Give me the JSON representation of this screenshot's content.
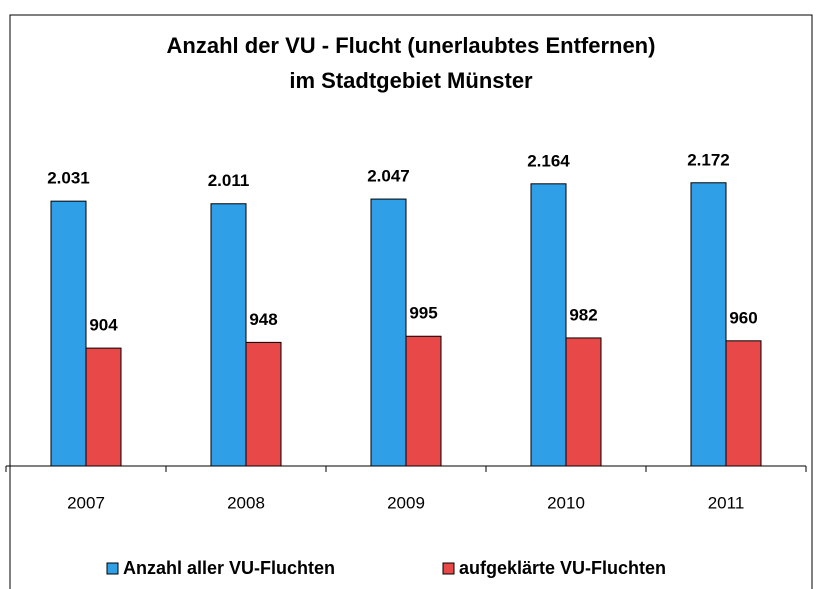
{
  "chart_data": {
    "type": "bar",
    "title": [
      "Anzahl der VU - Flucht (unerlaubtes Entfernen)",
      "im Stadtgebiet Münster"
    ],
    "categories": [
      "2007",
      "2008",
      "2009",
      "2010",
      "2011"
    ],
    "series": [
      {
        "name": "Anzahl aller VU-Fluchten",
        "color": "#2f9fe8",
        "values": [
          2031,
          2011,
          2047,
          2164,
          2172
        ],
        "value_labels": [
          "2.031",
          "2.011",
          "2.047",
          "2.164",
          "2.172"
        ]
      },
      {
        "name": "aufgeklärte VU-Fluchten",
        "color": "#e84848",
        "values": [
          904,
          948,
          995,
          982,
          960
        ]
      }
    ],
    "ylim": [
      0,
      2500
    ],
    "grid": false
  }
}
